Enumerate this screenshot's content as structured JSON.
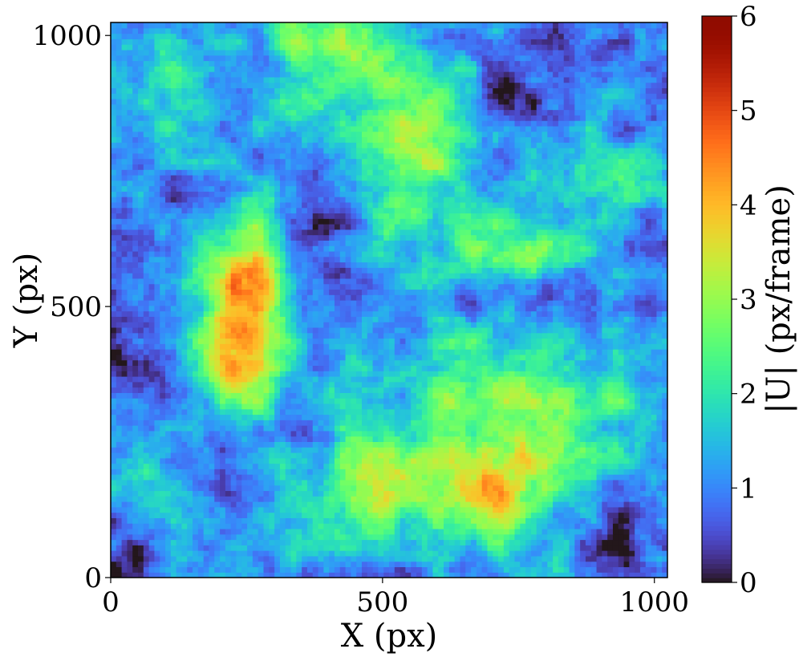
{
  "chart_data": {
    "type": "heatmap",
    "title": "",
    "xlabel": "X (px)",
    "ylabel": "Y (px)",
    "xlim": [
      0,
      1024
    ],
    "ylim": [
      0,
      1024
    ],
    "x_ticks": [
      0,
      500,
      1000
    ],
    "y_ticks": [
      0,
      500,
      1000
    ],
    "x_tick_labels": [
      "0",
      "500",
      "1000"
    ],
    "y_tick_labels": [
      "0",
      "500",
      "1000"
    ],
    "grid_resolution": 102,
    "colormap": "turbo",
    "colorbar": {
      "label": "|U| (px/frame)",
      "range": [
        0,
        6
      ],
      "ticks": [
        0,
        1,
        2,
        3,
        4,
        5,
        6
      ],
      "tick_labels": [
        "0",
        "1",
        "2",
        "3",
        "4",
        "5",
        "6"
      ]
    },
    "background_level": 1.0,
    "features": [
      {
        "x": 230,
        "y": 430,
        "sx": 60,
        "sy": 120,
        "amp": 2.6
      },
      {
        "x": 270,
        "y": 570,
        "sx": 45,
        "sy": 80,
        "amp": 2.0
      },
      {
        "x": 560,
        "y": 760,
        "sx": 90,
        "sy": 120,
        "amp": 1.9
      },
      {
        "x": 460,
        "y": 920,
        "sx": 110,
        "sy": 70,
        "amp": 1.6
      },
      {
        "x": 380,
        "y": 1000,
        "sx": 60,
        "sy": 40,
        "amp": 1.5
      },
      {
        "x": 750,
        "y": 600,
        "sx": 70,
        "sy": 40,
        "amp": 1.8
      },
      {
        "x": 500,
        "y": 170,
        "sx": 90,
        "sy": 60,
        "amp": 2.1
      },
      {
        "x": 730,
        "y": 150,
        "sx": 70,
        "sy": 70,
        "amp": 2.1
      },
      {
        "x": 650,
        "y": 330,
        "sx": 120,
        "sy": 110,
        "amp": 1.5
      },
      {
        "x": 120,
        "y": 900,
        "sx": 70,
        "sy": 60,
        "amp": 1.0
      },
      {
        "x": 870,
        "y": 300,
        "sx": 110,
        "sy": 110,
        "amp": 0.9
      },
      {
        "x": 900,
        "y": 750,
        "sx": 90,
        "sy": 60,
        "amp": 1.0
      },
      {
        "x": 60,
        "y": 200,
        "sx": 50,
        "sy": 60,
        "amp": 1.0
      },
      {
        "x": 380,
        "y": 700,
        "sx": 60,
        "sy": 80,
        "amp": -0.8
      },
      {
        "x": 50,
        "y": 380,
        "sx": 50,
        "sy": 60,
        "amp": -0.9
      },
      {
        "x": 450,
        "y": 870,
        "sx": 40,
        "sy": 40,
        "amp": -0.7
      },
      {
        "x": 700,
        "y": 880,
        "sx": 90,
        "sy": 70,
        "amp": -0.8
      },
      {
        "x": 750,
        "y": 520,
        "sx": 90,
        "sy": 30,
        "amp": -0.8
      },
      {
        "x": 950,
        "y": 70,
        "sx": 90,
        "sy": 60,
        "amp": -0.6
      },
      {
        "x": 200,
        "y": 250,
        "sx": 50,
        "sy": 70,
        "amp": -0.6
      },
      {
        "x": 550,
        "y": 380,
        "sx": 40,
        "sy": 40,
        "amp": -0.5
      },
      {
        "x": 20,
        "y": 30,
        "sx": 50,
        "sy": 40,
        "amp": -0.6
      }
    ]
  }
}
